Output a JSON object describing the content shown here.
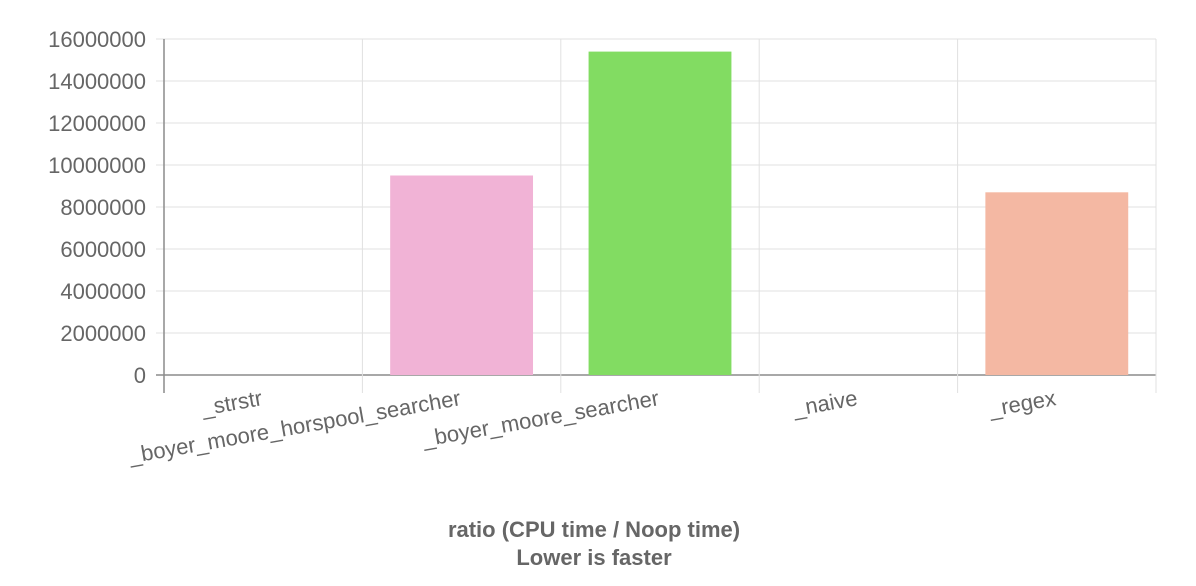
{
  "chart_data": {
    "type": "bar",
    "categories": [
      "_strstr",
      "_boyer_moore_horspool_searcher",
      "_boyer_moore_searcher",
      "_naive",
      "_regex"
    ],
    "values": [
      0,
      9500000,
      15400000,
      0,
      8700000
    ],
    "colors": [
      "#f1b3d6",
      "#f1b3d6",
      "#82dc62",
      "#f1b3d6",
      "#f4b8a3"
    ],
    "xlabel": "ratio (CPU time / Noop time)",
    "xlabel_sub": "Lower is faster",
    "ylim": [
      0,
      16000000
    ],
    "yticks": [
      "0",
      "2000000",
      "4000000",
      "6000000",
      "8000000",
      "10000000",
      "12000000",
      "14000000",
      "16000000"
    ],
    "grid": true
  }
}
